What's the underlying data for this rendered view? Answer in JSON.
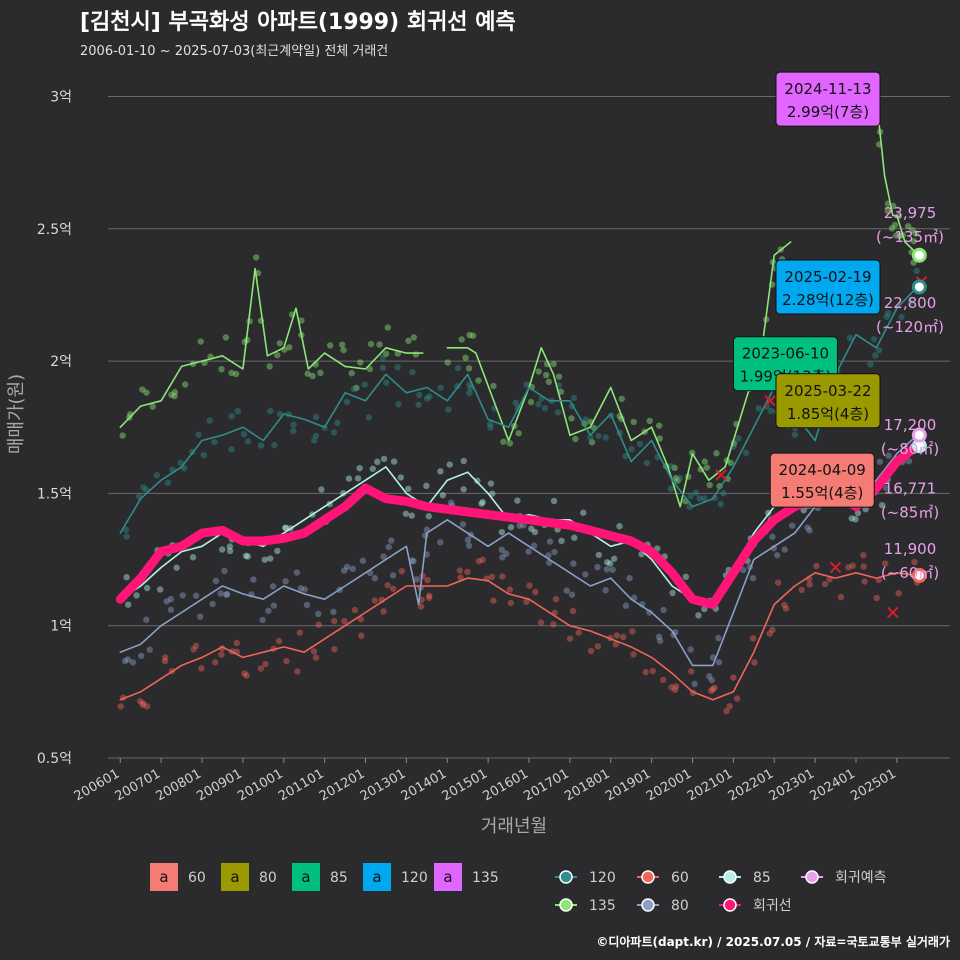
{
  "header": {
    "title": "[김천시] 부곡화성 아파트(1999) 회귀선 예측",
    "subtitle": "2006-01-10 ~ 2025-07-03(최근계약일) 전체 거래건"
  },
  "footer": {
    "credit": "©디아파트(dapt.kr) / 2025.07.05 / 자료=국토교통부 실거래가"
  },
  "chart_data": {
    "type": "line",
    "xlabel": "거래년월",
    "ylabel": "매매가(원)",
    "ylim": [
      0.5,
      3.1
    ],
    "xlim": [
      2005.7,
      2026.3
    ],
    "x_ticks": [
      "200601",
      "200701",
      "200801",
      "200901",
      "201001",
      "201101",
      "201201",
      "201301",
      "201401",
      "201501",
      "201601",
      "201701",
      "201801",
      "201901",
      "202001",
      "202101",
      "202201",
      "202301",
      "202401",
      "202501"
    ],
    "y_ticks": [
      {
        "value": 0.5,
        "label": "0.5억"
      },
      {
        "value": 1,
        "label": "1억"
      },
      {
        "value": 1.5,
        "label": "1.5억"
      },
      {
        "value": 2,
        "label": "2억"
      },
      {
        "value": 2.5,
        "label": "2.5억"
      },
      {
        "value": 3,
        "label": "3억"
      }
    ],
    "grid": true,
    "colors": {
      "60": "#f0645a",
      "80": "#8aa0c8",
      "85": "#b4f0e6",
      "120": "#2e8c8c",
      "135": "#8ce678",
      "reg": "#ff1477",
      "pred": "#e8a0e8"
    },
    "series": [
      {
        "name": "135",
        "key": "135",
        "x": [
          2006.0,
          2006.5,
          2007.0,
          2007.5,
          2008.0,
          2008.5,
          2009.0,
          2009.3,
          2009.6,
          2010.0,
          2010.3,
          2010.6,
          2011.0,
          2011.5,
          2012.0,
          2012.5,
          2013.0,
          2013.4
        ],
        "y": [
          1.75,
          1.83,
          1.85,
          1.98,
          2.0,
          2.02,
          1.97,
          2.35,
          2.02,
          2.05,
          2.2,
          1.97,
          2.03,
          1.98,
          1.97,
          2.05,
          2.03,
          2.03
        ]
      },
      {
        "name": "135b",
        "key": "135",
        "x": [
          2014.0,
          2014.5,
          2014.7,
          2015.5,
          2016.0,
          2016.3,
          2016.6,
          2017.0,
          2017.5,
          2018.0,
          2018.5,
          2019.0,
          2019.4,
          2019.7,
          2020.0,
          2020.4,
          2020.8,
          2021.0,
          2021.4,
          2021.7,
          2022.0,
          2022.4
        ],
        "y": [
          2.05,
          2.05,
          2.03,
          1.7,
          1.9,
          2.05,
          1.95,
          1.72,
          1.75,
          1.9,
          1.7,
          1.75,
          1.6,
          1.45,
          1.65,
          1.55,
          1.6,
          1.7,
          1.9,
          2.05,
          2.4,
          2.45
        ]
      },
      {
        "name": "135c",
        "key": "135",
        "x": [
          2024.5,
          2024.7,
          2024.9,
          2025.0,
          2025.2,
          2025.4,
          2025.5
        ],
        "y": [
          2.99,
          2.7,
          2.55,
          2.55,
          2.45,
          2.42,
          2.4
        ]
      },
      {
        "name": "120",
        "key": "120",
        "x": [
          2006.0,
          2006.5,
          2007.0,
          2007.5,
          2008.0,
          2008.5,
          2009.0,
          2009.5,
          2010.0,
          2010.5,
          2011.0,
          2011.5,
          2012.0,
          2012.5,
          2013.0,
          2013.5,
          2014.0,
          2014.5,
          2015.0,
          2015.5,
          2016.0,
          2016.5,
          2017.0,
          2017.5,
          2018.0,
          2018.5,
          2019.0,
          2019.5,
          2020.0,
          2020.5,
          2021.0,
          2021.5,
          2022.0,
          2022.5,
          2023.0,
          2023.5,
          2024.0,
          2024.5,
          2025.0,
          2025.5
        ],
        "y": [
          1.35,
          1.48,
          1.55,
          1.6,
          1.7,
          1.72,
          1.75,
          1.7,
          1.8,
          1.78,
          1.75,
          1.88,
          1.85,
          1.95,
          1.88,
          1.9,
          1.85,
          1.95,
          1.78,
          1.75,
          1.9,
          1.85,
          1.85,
          1.72,
          1.8,
          1.62,
          1.7,
          1.55,
          1.45,
          1.48,
          1.6,
          1.75,
          1.9,
          1.8,
          1.7,
          1.95,
          2.1,
          2.05,
          2.2,
          2.28
        ]
      },
      {
        "name": "85",
        "key": "85",
        "x": [
          2006.0,
          2006.5,
          2007.0,
          2007.5,
          2008.0,
          2008.5,
          2009.0,
          2009.5,
          2010.0,
          2010.5,
          2011.0,
          2011.5,
          2012.0,
          2012.5,
          2013.0,
          2013.5,
          2014.0,
          2014.5,
          2015.0,
          2015.5,
          2016.0,
          2016.5,
          2017.0,
          2017.5,
          2018.0,
          2018.5,
          2019.0,
          2019.5,
          2020.0,
          2020.5,
          2021.0,
          2021.5,
          2022.0,
          2022.5,
          2023.0,
          2023.5,
          2024.0,
          2024.5,
          2025.0,
          2025.5
        ],
        "y": [
          1.1,
          1.15,
          1.22,
          1.28,
          1.3,
          1.35,
          1.32,
          1.3,
          1.35,
          1.4,
          1.45,
          1.5,
          1.55,
          1.6,
          1.5,
          1.45,
          1.55,
          1.58,
          1.5,
          1.4,
          1.42,
          1.4,
          1.4,
          1.35,
          1.3,
          1.32,
          1.25,
          1.15,
          1.1,
          1.08,
          1.2,
          1.35,
          1.45,
          1.48,
          1.5,
          1.6,
          1.45,
          1.5,
          1.6,
          1.68
        ]
      },
      {
        "name": "80",
        "key": "80",
        "x": [
          2006.0,
          2006.5,
          2007.0,
          2007.5,
          2008.0,
          2008.5,
          2009.0,
          2009.5,
          2010.0,
          2010.5,
          2011.0,
          2011.5,
          2012.0,
          2012.5,
          2013.0,
          2013.3,
          2013.5,
          2014.0,
          2014.5,
          2015.0,
          2015.5,
          2016.0,
          2016.5,
          2017.0,
          2017.5,
          2018.0,
          2018.5,
          2019.0,
          2019.5,
          2020.0,
          2020.5,
          2021.0,
          2021.5,
          2022.0,
          2022.5,
          2023.0,
          2023.5,
          2024.0,
          2024.5,
          2025.0,
          2025.5
        ],
        "y": [
          0.9,
          0.93,
          1.0,
          1.05,
          1.1,
          1.15,
          1.12,
          1.1,
          1.15,
          1.12,
          1.1,
          1.15,
          1.2,
          1.25,
          1.3,
          1.08,
          1.35,
          1.4,
          1.35,
          1.3,
          1.35,
          1.3,
          1.25,
          1.2,
          1.15,
          1.18,
          1.1,
          1.05,
          0.98,
          0.85,
          0.85,
          1.05,
          1.25,
          1.3,
          1.35,
          1.45,
          1.55,
          1.5,
          1.55,
          1.65,
          1.72
        ]
      },
      {
        "name": "60",
        "key": "60",
        "x": [
          2006.0,
          2006.5,
          2007.0,
          2007.5,
          2008.0,
          2008.5,
          2009.0,
          2009.5,
          2010.0,
          2010.5,
          2011.0,
          2011.5,
          2012.0,
          2012.5,
          2013.0,
          2013.5,
          2014.0,
          2014.5,
          2015.0,
          2015.5,
          2016.0,
          2016.5,
          2017.0,
          2017.5,
          2018.0,
          2018.5,
          2019.0,
          2019.5,
          2020.0,
          2020.5,
          2021.0,
          2021.5,
          2022.0,
          2022.5,
          2023.0,
          2023.5,
          2024.0,
          2024.5,
          2025.0,
          2025.5
        ],
        "y": [
          0.72,
          0.75,
          0.8,
          0.85,
          0.88,
          0.92,
          0.88,
          0.9,
          0.92,
          0.9,
          0.95,
          1.0,
          1.05,
          1.1,
          1.15,
          1.15,
          1.15,
          1.18,
          1.17,
          1.12,
          1.1,
          1.05,
          1.0,
          0.98,
          0.95,
          0.92,
          0.88,
          0.82,
          0.75,
          0.72,
          0.75,
          0.9,
          1.08,
          1.15,
          1.2,
          1.18,
          1.2,
          1.18,
          1.2,
          1.19
        ]
      },
      {
        "name": "회귀선",
        "key": "reg",
        "x": [
          2006.0,
          2006.5,
          2007.0,
          2007.5,
          2008.0,
          2008.5,
          2009.0,
          2009.5,
          2010.0,
          2010.5,
          2011.0,
          2011.5,
          2012.0,
          2012.5,
          2013.0,
          2013.5,
          2014.0,
          2014.5,
          2015.0,
          2015.5,
          2016.0,
          2016.5,
          2017.0,
          2017.5,
          2018.0,
          2018.5,
          2019.0,
          2019.5,
          2020.0,
          2020.5,
          2021.0,
          2021.5,
          2022.0,
          2022.5,
          2023.0,
          2023.5,
          2024.0,
          2024.5,
          2025.0,
          2025.5
        ],
        "y": [
          1.1,
          1.18,
          1.28,
          1.3,
          1.35,
          1.36,
          1.32,
          1.32,
          1.33,
          1.35,
          1.4,
          1.45,
          1.52,
          1.48,
          1.47,
          1.45,
          1.44,
          1.43,
          1.42,
          1.41,
          1.4,
          1.39,
          1.38,
          1.36,
          1.34,
          1.32,
          1.28,
          1.2,
          1.1,
          1.08,
          1.2,
          1.32,
          1.4,
          1.45,
          1.48,
          1.5,
          1.45,
          1.52,
          1.62,
          1.68
        ]
      }
    ],
    "end_markers": [
      {
        "key": "135",
        "x": 2025.55,
        "y": 2.4
      },
      {
        "key": "120",
        "x": 2025.55,
        "y": 2.28
      },
      {
        "key": "85",
        "x": 2025.55,
        "y": 1.68
      },
      {
        "key": "pred",
        "x": 2025.55,
        "y": 1.72
      },
      {
        "key": "60",
        "x": 2025.55,
        "y": 1.19
      }
    ],
    "annotations": [
      {
        "date": "2024-11-13",
        "price": "2.99억(7층)",
        "color": "#e066ff",
        "x": 2024.8,
        "y": 2.99
      },
      {
        "date": "2025-02-19",
        "price": "2.28억(12층)",
        "color": "#00a8f0",
        "x": 2025.1,
        "y": 2.28
      },
      {
        "date": "2023-06-10",
        "price": "1.99억(13층)",
        "color": "#00c07f",
        "x": 2023.4,
        "y": 1.99
      },
      {
        "date": "2025-03-22",
        "price": "1.85억(4층)",
        "color": "#9a9a00",
        "x": 2025.2,
        "y": 1.85
      },
      {
        "date": "2024-04-09",
        "price": "1.55억(4층)",
        "color": "#f47c74",
        "x": 2024.3,
        "y": 1.55
      }
    ],
    "right_labels": [
      {
        "value": "23,975",
        "area": "(~135㎡)",
        "y": 2.54
      },
      {
        "value": "22,800",
        "area": "(~120㎡)",
        "y": 2.2
      },
      {
        "value": "17,200",
        "area": "(~80㎡)",
        "y": 1.74
      },
      {
        "value": "16,771",
        "area": "(~85㎡)",
        "y": 1.5
      },
      {
        "value": "11,900",
        "area": "(~60㎡)",
        "y": 1.27
      }
    ],
    "legend_area": [
      {
        "label": "60",
        "color": "#f47c74"
      },
      {
        "label": "80",
        "color": "#9a9a00"
      },
      {
        "label": "85",
        "color": "#00c07f"
      },
      {
        "label": "120",
        "color": "#00a8f0"
      },
      {
        "label": "135",
        "color": "#e066ff"
      }
    ],
    "legend_line": [
      {
        "label": "120",
        "key": "120"
      },
      {
        "label": "60",
        "key": "60"
      },
      {
        "label": "85",
        "key": "85"
      },
      {
        "label": "회귀예측",
        "key": "pred"
      },
      {
        "label": "135",
        "key": "135"
      },
      {
        "label": "80",
        "key": "80"
      },
      {
        "label": "회귀선",
        "key": "reg"
      }
    ],
    "legend_glyph": "a"
  }
}
